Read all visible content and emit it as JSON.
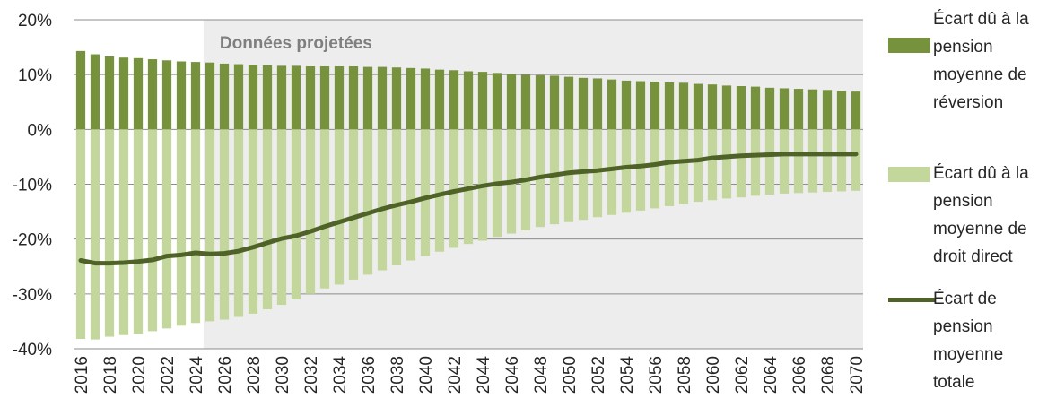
{
  "chart_data": {
    "type": "bar",
    "annotation": "Données projetées",
    "ylim": [
      -40,
      20
    ],
    "yticks": [
      20,
      10,
      0,
      -10,
      -20,
      -30,
      -40
    ],
    "ytick_labels": [
      "20%",
      "10%",
      "0%",
      "-10%",
      "-20%",
      "-30%",
      "-40%"
    ],
    "xtick_labels": [
      "2016",
      "2018",
      "2020",
      "2022",
      "2024",
      "2026",
      "2028",
      "2030",
      "2032",
      "2034",
      "2036",
      "2038",
      "2040",
      "2042",
      "2044",
      "2046",
      "2048",
      "2050",
      "2052",
      "2054",
      "2056",
      "2058",
      "2060",
      "2062",
      "2064",
      "2066",
      "2068",
      "2070"
    ],
    "categories": [
      2016,
      2017,
      2018,
      2019,
      2020,
      2021,
      2022,
      2023,
      2024,
      2025,
      2026,
      2027,
      2028,
      2029,
      2030,
      2031,
      2032,
      2033,
      2034,
      2035,
      2036,
      2037,
      2038,
      2039,
      2040,
      2041,
      2042,
      2043,
      2044,
      2045,
      2046,
      2047,
      2048,
      2049,
      2050,
      2051,
      2052,
      2053,
      2054,
      2055,
      2056,
      2057,
      2058,
      2059,
      2060,
      2061,
      2062,
      2063,
      2064,
      2065,
      2066,
      2067,
      2068,
      2069,
      2070
    ],
    "projection_start": 2025,
    "grid": true,
    "legend_position": "right",
    "series": [
      {
        "name": "Écart dû à la pension moyenne de réversion",
        "type": "bar",
        "color": "#76923c",
        "values": [
          14.3,
          13.7,
          13.3,
          13.1,
          13.0,
          12.8,
          12.6,
          12.4,
          12.3,
          12.2,
          12.0,
          11.9,
          11.8,
          11.7,
          11.6,
          11.6,
          11.5,
          11.5,
          11.5,
          11.5,
          11.4,
          11.4,
          11.3,
          11.2,
          11.1,
          10.9,
          10.8,
          10.6,
          10.5,
          10.3,
          10.1,
          10.0,
          9.9,
          9.8,
          9.6,
          9.4,
          9.3,
          9.1,
          8.9,
          8.8,
          8.7,
          8.6,
          8.5,
          8.3,
          8.2,
          8.0,
          7.9,
          7.8,
          7.6,
          7.5,
          7.4,
          7.3,
          7.2,
          7.0,
          6.9
        ]
      },
      {
        "name": "Écart dû à la pension moyenne de droit direct",
        "type": "bar",
        "color": "#c3d69b",
        "values": [
          -38.2,
          -38.3,
          -37.8,
          -37.5,
          -37.3,
          -36.8,
          -36.3,
          -35.8,
          -35.3,
          -35.0,
          -34.7,
          -34.2,
          -33.6,
          -32.8,
          -32.0,
          -31.0,
          -30.0,
          -29.0,
          -28.3,
          -27.4,
          -26.5,
          -25.7,
          -24.8,
          -23.9,
          -23.1,
          -22.3,
          -21.6,
          -20.9,
          -20.3,
          -19.6,
          -19.0,
          -18.4,
          -17.8,
          -17.3,
          -16.9,
          -16.5,
          -16.0,
          -15.6,
          -15.2,
          -14.8,
          -14.4,
          -14.0,
          -13.6,
          -13.2,
          -12.9,
          -12.6,
          -12.4,
          -12.1,
          -11.9,
          -11.7,
          -11.6,
          -11.5,
          -11.4,
          -11.3,
          -11.2
        ]
      },
      {
        "name": "Écart de pension moyenne totale",
        "type": "line",
        "color": "#4f6228",
        "values": [
          -23.9,
          -24.4,
          -24.4,
          -24.3,
          -24.1,
          -23.8,
          -23.1,
          -22.9,
          -22.5,
          -22.7,
          -22.6,
          -22.2,
          -21.5,
          -20.7,
          -19.9,
          -19.4,
          -18.6,
          -17.7,
          -16.9,
          -16.1,
          -15.3,
          -14.5,
          -13.8,
          -13.2,
          -12.5,
          -11.9,
          -11.3,
          -10.8,
          -10.3,
          -9.9,
          -9.6,
          -9.2,
          -8.7,
          -8.3,
          -7.9,
          -7.7,
          -7.5,
          -7.2,
          -6.9,
          -6.7,
          -6.4,
          -6.0,
          -5.8,
          -5.6,
          -5.2,
          -5.0,
          -4.8,
          -4.7,
          -4.6,
          -4.5,
          -4.5,
          -4.5,
          -4.5,
          -4.5,
          -4.5
        ]
      }
    ]
  },
  "legend": {
    "items": [
      {
        "lines": [
          "Écart dû à la",
          "pension",
          "moyenne de",
          "réversion"
        ]
      },
      {
        "lines": [
          "Écart dû à la",
          "pension",
          "moyenne de",
          "droit direct"
        ]
      },
      {
        "lines": [
          "Écart de",
          "pension",
          "moyenne",
          "totale"
        ]
      }
    ]
  }
}
